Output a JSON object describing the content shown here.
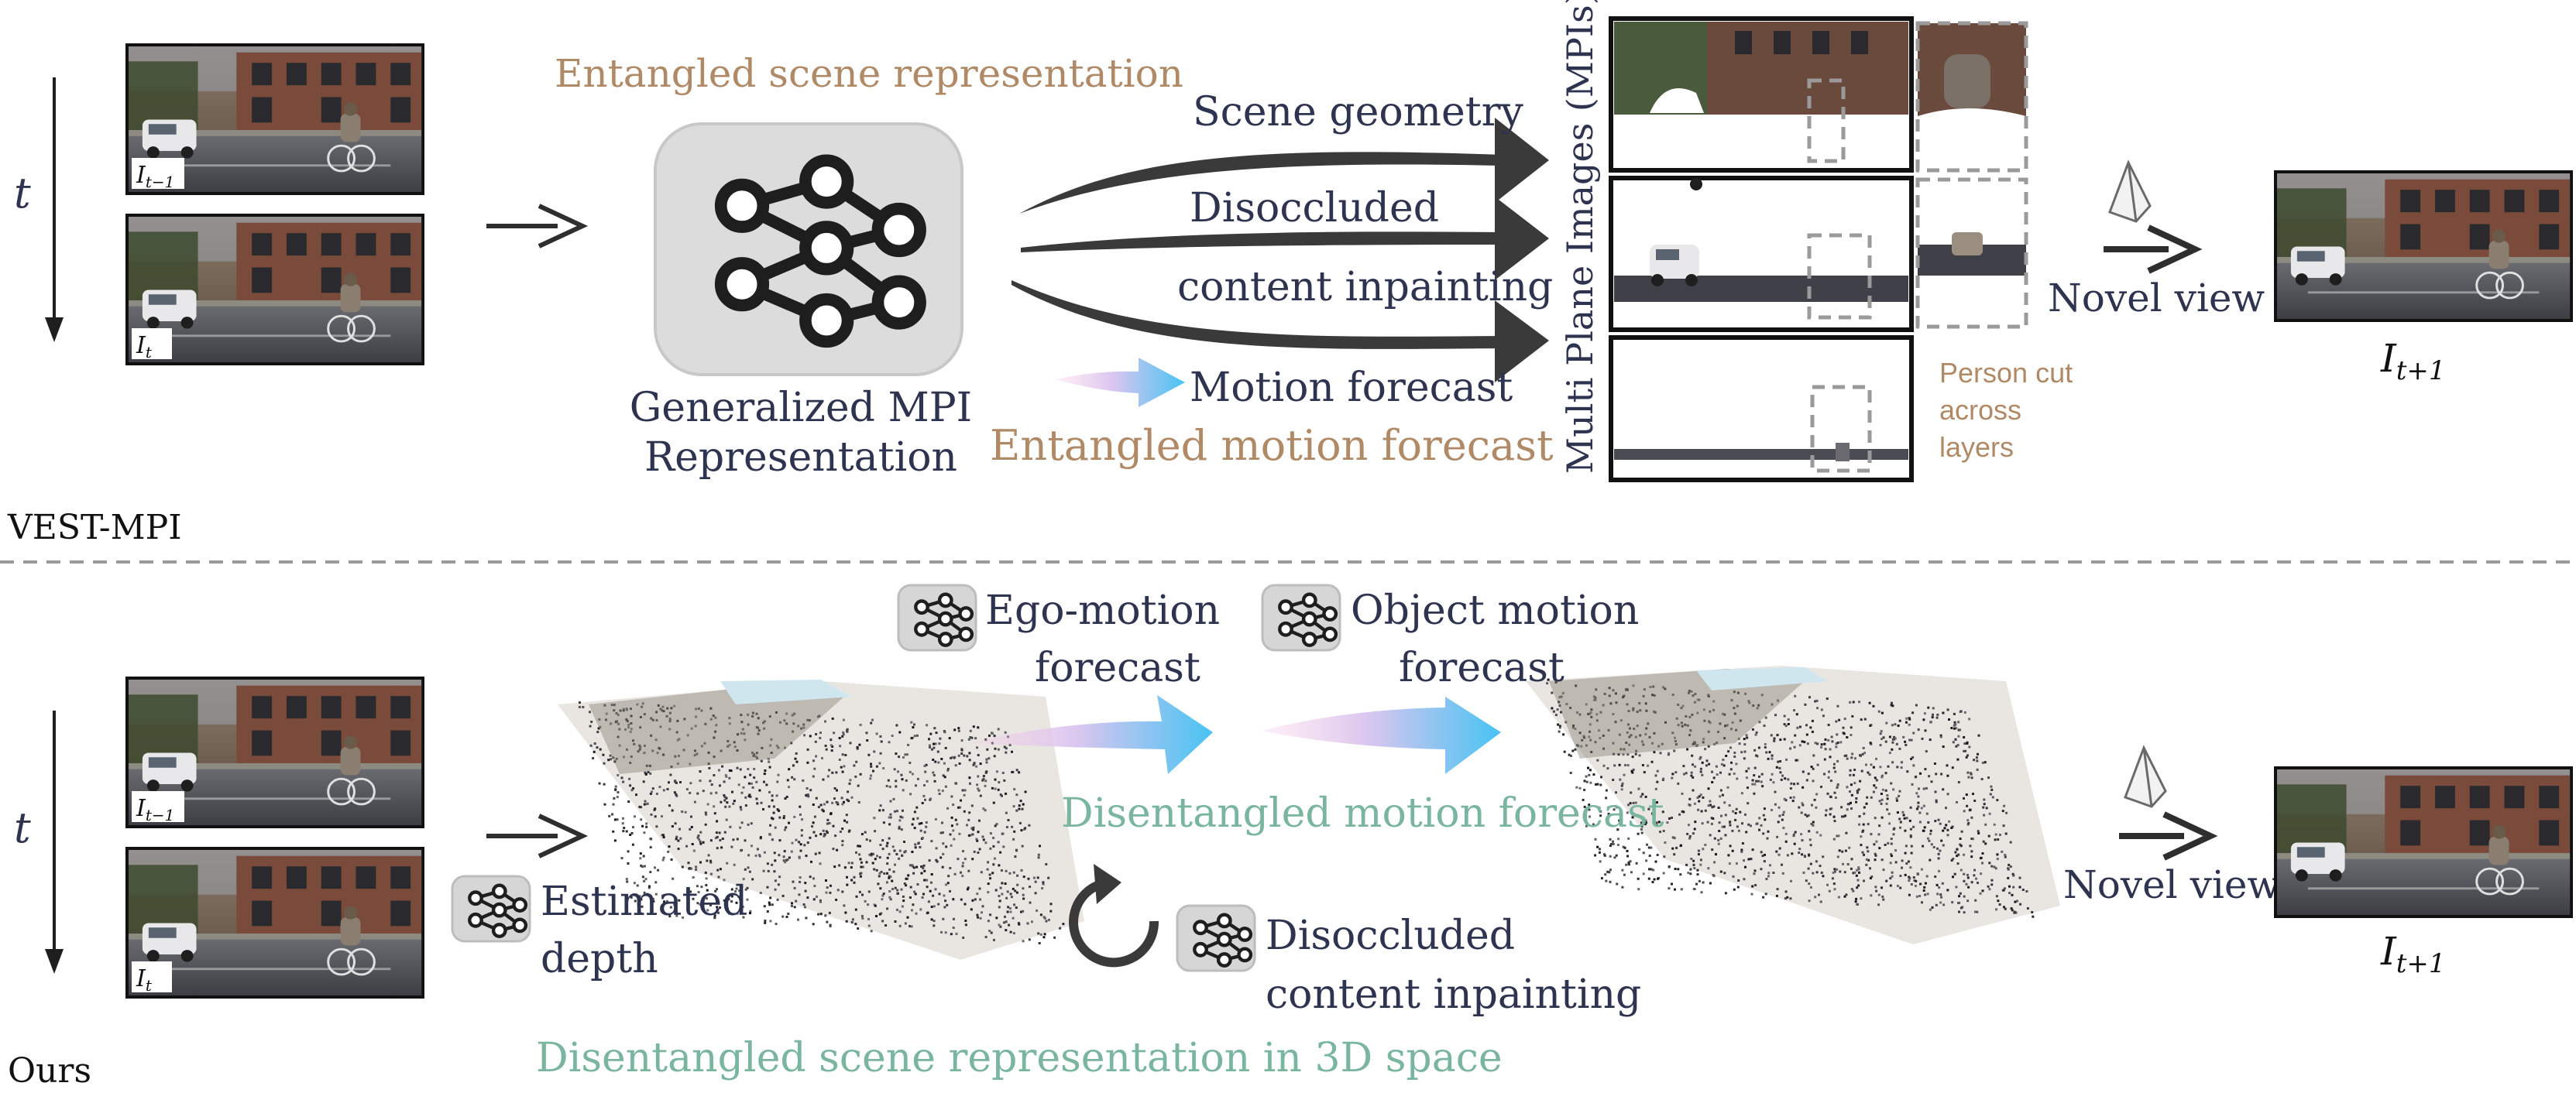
{
  "top": {
    "section_label": "VEST-MPI",
    "time_axis": "t",
    "frame_prev_label": "I",
    "frame_prev_sub": "t−1",
    "frame_cur_label": "I",
    "frame_cur_sub": "t",
    "entangled_scene": "Entangled scene representation",
    "net_label_1": "Generalized MPI",
    "net_label_2": "Representation",
    "scene_geometry": "Scene geometry",
    "disoccluded_1": "Disoccluded",
    "disoccluded_2": "content inpainting",
    "motion_forecast": "Motion forecast",
    "entangled_motion": "Entangled motion forecast",
    "mpi_title": "Multi Plane Images (MPIs)",
    "person_cut": [
      "Person cut",
      "across",
      "layers"
    ],
    "novel_view": "Novel view",
    "output_label": "I",
    "output_sub": "t+1"
  },
  "bottom": {
    "section_label": "Ours",
    "time_axis": "t",
    "frame_prev_label": "I",
    "frame_prev_sub": "t−1",
    "frame_cur_label": "I",
    "frame_cur_sub": "t",
    "ego_motion_1": "Ego-motion",
    "ego_motion_2": "forecast",
    "object_motion_1": "Object motion",
    "object_motion_2": "forecast",
    "disentangled_motion": "Disentangled motion forecast",
    "estimated_1": "Estimated",
    "estimated_2": "depth",
    "disoccluded_1": "Disoccluded",
    "disoccluded_2": "content inpainting",
    "disentangled_scene": "Disentangled scene representation in 3D space",
    "novel_view": "Novel view",
    "output_label": "I",
    "output_sub": "t+1"
  },
  "colors": {
    "navy": "#2e3350",
    "tan": "#b08a66",
    "teal": "#7ab59e",
    "dark_arrow": "#3a3a3a",
    "dash": "#9a9a9a"
  }
}
